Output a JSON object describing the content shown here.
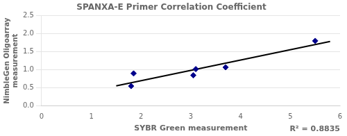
{
  "chart_data": {
    "type": "scatter",
    "title": "SPANXA-E Primer Correlation Coefficient",
    "x_label": "SYBR Green measurement",
    "y_label": "NimbleGen Oligoarray\nmeasurement",
    "annotations": [
      "R² = 0.8835"
    ],
    "xlim": [
      0,
      6
    ],
    "ylim": [
      0,
      2.5
    ],
    "xticks": [
      0,
      1,
      2,
      3,
      4,
      5,
      6
    ],
    "yticks": [
      {
        "value": 0,
        "label": "0.0"
      },
      0.5,
      {
        "value": 1.0,
        "label": "1.0"
      },
      1.5,
      {
        "value": 2.0,
        "label": "2.0"
      },
      2.5
    ],
    "grid": "y",
    "series": [
      {
        "type": "scatter",
        "color": "#00008B",
        "marker": "diamond",
        "x": [
          1.8,
          1.85,
          3.05,
          3.1,
          3.7,
          5.5
        ],
        "values": [
          0.55,
          0.9,
          0.85,
          1.02,
          1.07,
          1.8
        ]
      },
      {
        "type": "line",
        "color": "black",
        "line_style": "solid",
        "x": [
          1.5,
          5.8
        ],
        "values": [
          0.55621,
          1.78289
        ]
      }
    ]
  }
}
